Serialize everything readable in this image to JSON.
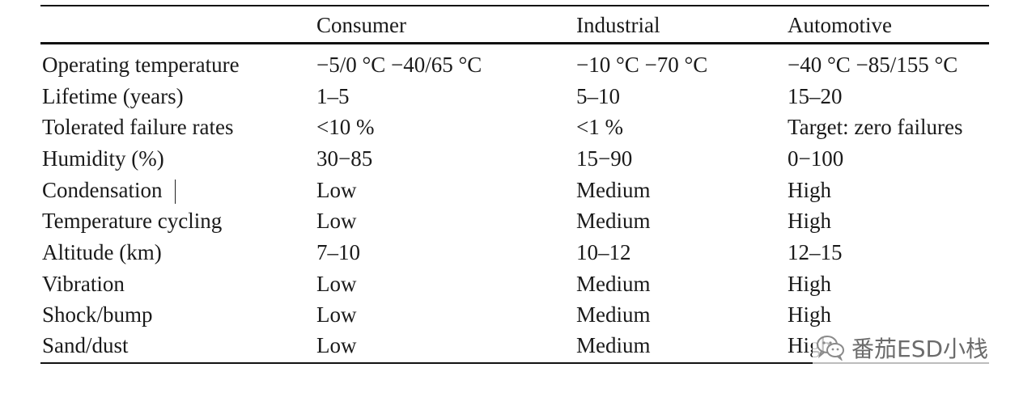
{
  "table": {
    "headers": [
      "",
      "Consumer",
      "Industrial",
      "Automotive"
    ],
    "rows": [
      [
        "Operating temperature",
        "−5/0 °C −40/65 °C",
        "−10 °C −70 °C",
        "−40 °C −85/155 °C"
      ],
      [
        "Lifetime (years)",
        "1–5",
        "5–10",
        "15–20"
      ],
      [
        "Tolerated failure rates",
        "<10 %",
        "<1 %",
        "Target: zero failures"
      ],
      [
        "Humidity (%)",
        "30−85",
        "15−90",
        "0−100"
      ],
      [
        "Condensation",
        "Low",
        "Medium",
        "High"
      ],
      [
        "Temperature cycling",
        "Low",
        "Medium",
        "High"
      ],
      [
        "Altitude (km)",
        "7–10",
        "10–12",
        "12–15"
      ],
      [
        "Vibration",
        "Low",
        "Medium",
        "High"
      ],
      [
        "Shock/bump",
        "Low",
        "Medium",
        "High"
      ],
      [
        "Sand/dust",
        "Low",
        "Medium",
        "High"
      ]
    ]
  },
  "watermark": {
    "text": "番茄ESD小栈",
    "icon": "wechat-icon"
  }
}
